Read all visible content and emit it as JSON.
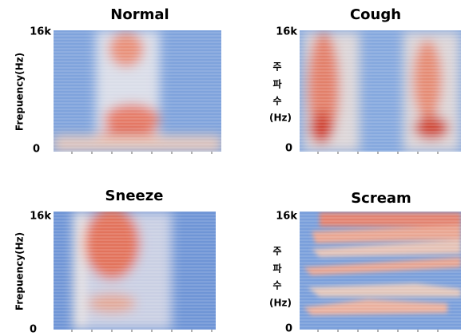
{
  "panels": [
    {
      "title": "Normal",
      "y_label": "Frepuency(Hz)",
      "y_ticks": [
        "16k",
        "0"
      ]
    },
    {
      "title": "Cough",
      "y_label_lines": [
        "주",
        "파",
        "수",
        "(Hz)"
      ],
      "y_ticks": [
        "16k",
        "0"
      ]
    },
    {
      "title": "Sneeze",
      "y_label": "Frepuency(Hz)",
      "y_ticks": [
        "16k",
        "0"
      ]
    },
    {
      "title": "Scream",
      "y_label_lines": [
        "주",
        "파",
        "수",
        "(Hz)"
      ],
      "y_ticks": [
        "16k",
        "0"
      ]
    }
  ]
}
